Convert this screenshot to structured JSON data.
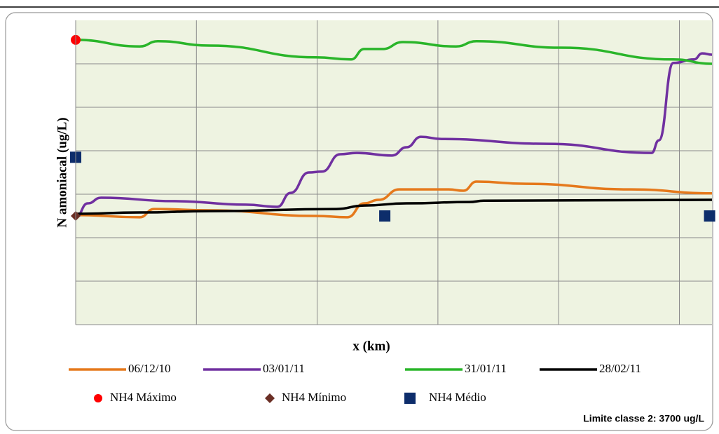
{
  "chart_data": {
    "type": "line",
    "x_label": "x (km)",
    "y_label": "N amoniacal (ug/L)",
    "annotation": "Limite classe 2: 3700 ug/L",
    "xlim": [
      0,
      5.27
    ],
    "ylim": [
      0,
      7
    ],
    "xticks": [
      0,
      1,
      2,
      3,
      4,
      5
    ],
    "yticks": [
      0,
      1,
      2,
      3,
      4,
      5,
      6
    ],
    "grid": true,
    "legend": "bottom",
    "series": [
      {
        "name": "06/12/10",
        "color": "#e5791c",
        "style": "line",
        "x": [
          0,
          0.53,
          0.65,
          1.11,
          1.99,
          2.25,
          2.39,
          2.51,
          2.68,
          3.09,
          3.21,
          3.32,
          3.73,
          4.6,
          5.27
        ],
        "values": [
          2.52,
          2.47,
          2.66,
          2.63,
          2.5,
          2.47,
          2.79,
          2.87,
          3.11,
          3.11,
          3.08,
          3.29,
          3.24,
          3.11,
          3.02
        ]
      },
      {
        "name": "03/01/11",
        "color": "#7030a0",
        "style": "line",
        "x": [
          0,
          0.1,
          0.21,
          0.82,
          1.41,
          1.67,
          1.78,
          1.93,
          2.04,
          2.19,
          2.33,
          2.62,
          2.74,
          2.86,
          3.03,
          3.9,
          4.77,
          4.83,
          4.95,
          5.12,
          5.19,
          5.27
        ],
        "values": [
          2.47,
          2.79,
          2.92,
          2.84,
          2.76,
          2.71,
          3.03,
          3.5,
          3.52,
          3.92,
          3.95,
          3.89,
          4.08,
          4.32,
          4.27,
          4.16,
          3.95,
          4.24,
          6.02,
          6.1,
          6.24,
          6.21
        ]
      },
      {
        "name": "31/01/11",
        "color": "#2ab52a",
        "style": "line",
        "x": [
          0,
          0.53,
          0.68,
          1.11,
          1.99,
          2.28,
          2.39,
          2.54,
          2.71,
          3.15,
          3.32,
          4.02,
          4.95,
          5.27
        ],
        "values": [
          6.55,
          6.4,
          6.52,
          6.42,
          6.15,
          6.1,
          6.34,
          6.34,
          6.5,
          6.4,
          6.52,
          6.37,
          6.1,
          6.0
        ]
      },
      {
        "name": "28/02/11",
        "color": "#000000",
        "style": "line",
        "x": [
          0,
          0.53,
          1.11,
          2.16,
          2.39,
          2.74,
          3.26,
          3.38,
          5.27
        ],
        "values": [
          2.55,
          2.58,
          2.61,
          2.66,
          2.74,
          2.79,
          2.82,
          2.85,
          2.87
        ]
      },
      {
        "name": "NH4 Máximo",
        "color": "#ff0000",
        "style": "circle",
        "x": [
          0
        ],
        "values": [
          6.55
        ]
      },
      {
        "name": "NH4 Mínimo",
        "color": "#6b2f25",
        "style": "diamond",
        "x": [
          0
        ],
        "values": [
          2.5
        ]
      },
      {
        "name": "NH4 Médio",
        "color": "#0d2d6b",
        "style": "square",
        "x": [
          0,
          2.56,
          5.25
        ],
        "values": [
          3.85,
          2.5,
          2.5
        ]
      }
    ]
  }
}
